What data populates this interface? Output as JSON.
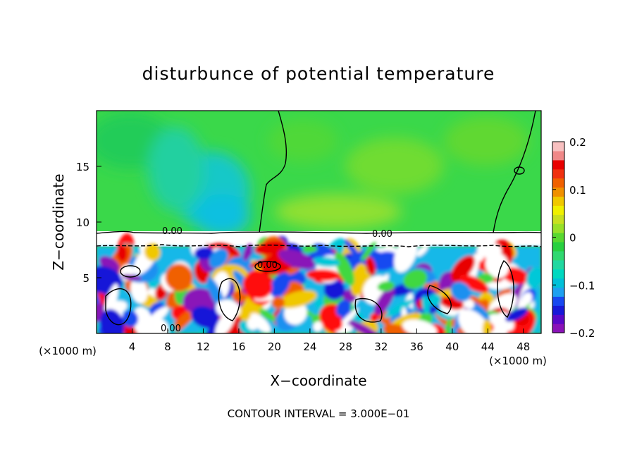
{
  "chart_data": {
    "type": "heatmap",
    "title": "disturbunce of potential temperature",
    "xlabel": "X−coordinate",
    "ylabel": "Z−coordinate",
    "x_unit": "(×1000 m)",
    "z_unit": "(×1000 m)",
    "xlim": [
      0,
      50
    ],
    "ylim": [
      0,
      20
    ],
    "x_ticks": [
      "4",
      "8",
      "12",
      "16",
      "20",
      "24",
      "28",
      "32",
      "36",
      "40",
      "44",
      "48"
    ],
    "y_ticks": [
      "5",
      "10",
      "15"
    ],
    "colorbar": {
      "range": [
        -0.2,
        0.2
      ],
      "tick_labels": [
        "0.2",
        "0.1",
        "0",
        "−0.1",
        "−0.2"
      ],
      "tick_values": [
        0.2,
        0.1,
        0,
        -0.1,
        -0.2
      ],
      "colors": [
        "#8a12b8",
        "#5a08c8",
        "#1818d8",
        "#1848f0",
        "#1ea0f0",
        "#00c0d8",
        "#00d8c0",
        "#20d8a0",
        "#30d870",
        "#28d040",
        "#58d830",
        "#98e028",
        "#c8e020",
        "#f0f000",
        "#f0c800",
        "#f09000",
        "#f06000",
        "#f03010",
        "#e80000",
        "#f08888",
        "#f8c0c0"
      ]
    },
    "contour_labels": [
      "0.00",
      "0.00",
      "0.00",
      "0.00"
    ],
    "contour_interval_label": "CONTOUR INTERVAL = 3.000E−01",
    "legend": "colorbar right",
    "grid": false
  }
}
